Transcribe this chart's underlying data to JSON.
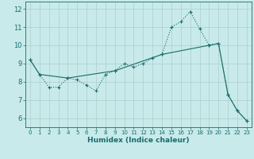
{
  "title": "",
  "xlabel": "Humidex (Indice chaleur)",
  "bg_color": "#c8eaea",
  "grid_color": "#b0cccc",
  "line_color": "#1a6b6b",
  "xlim": [
    -0.5,
    23.5
  ],
  "ylim": [
    5.5,
    12.4
  ],
  "xticks": [
    0,
    1,
    2,
    3,
    4,
    5,
    6,
    7,
    8,
    9,
    10,
    11,
    12,
    13,
    14,
    15,
    16,
    17,
    18,
    19,
    20,
    21,
    22,
    23
  ],
  "yticks": [
    6,
    7,
    8,
    9,
    10,
    11,
    12
  ],
  "line1_x": [
    0,
    1,
    2,
    3,
    4,
    5,
    6,
    7,
    8,
    9,
    10,
    11,
    12,
    13,
    14,
    15,
    16,
    17,
    18,
    19,
    20,
    21,
    22,
    23
  ],
  "line1_y": [
    9.2,
    8.4,
    7.7,
    7.7,
    8.2,
    8.1,
    7.8,
    7.5,
    8.4,
    8.6,
    9.0,
    8.8,
    9.0,
    9.3,
    9.5,
    11.0,
    11.3,
    11.85,
    10.9,
    10.0,
    10.1,
    7.3,
    6.4,
    5.85
  ],
  "line2_x": [
    0,
    1,
    4,
    9,
    14,
    19,
    20,
    21,
    22,
    23
  ],
  "line2_y": [
    9.2,
    8.4,
    8.2,
    8.6,
    9.5,
    10.0,
    10.1,
    7.3,
    6.4,
    5.85
  ]
}
